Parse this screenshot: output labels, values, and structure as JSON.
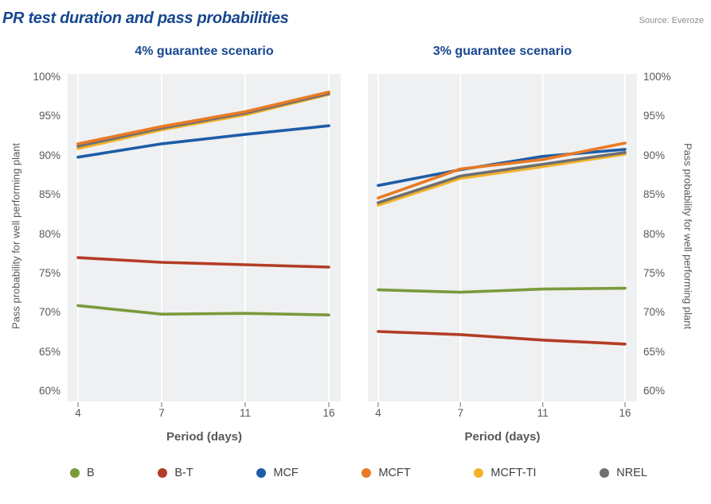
{
  "header": {
    "title": "PR test duration and pass probabilities",
    "source": "Source: Everoze"
  },
  "axis": {
    "x_label": "Period (days)",
    "y_label_left": "Pass probability for well performing plant",
    "y_label_right": "Pass probability for well performing plant",
    "x_ticks": [
      "4",
      "7",
      "11",
      "16"
    ],
    "y_ticks": [
      "100%",
      "95%",
      "90%",
      "85%",
      "80%",
      "75%",
      "70%",
      "65%",
      "60%"
    ]
  },
  "colors": {
    "plot_bg": "#eff0f1",
    "grid": "#ffffff",
    "tick_mark": "#97999c",
    "title_blue": "#17478e",
    "axis_text": "#57585a"
  },
  "legend": [
    {
      "label": "B",
      "color": "#7a9a3b"
    },
    {
      "label": "B-T",
      "color": "#b23c25"
    },
    {
      "label": "MCF",
      "color": "#1f5ca8"
    },
    {
      "label": "MCFT",
      "color": "#e87a25"
    },
    {
      "label": "MCFT-TI",
      "color": "#f3b229"
    },
    {
      "label": "NREL",
      "color": "#6e6f72"
    }
  ],
  "chart_data": [
    {
      "type": "line",
      "title": "4% guarantee scenario",
      "x": [
        4,
        7,
        11,
        16
      ],
      "xlabel": "Period (days)",
      "ylabel": "Pass probability for well performing plant (%)",
      "ylim": [
        60,
        100
      ],
      "grid": "vertical",
      "series": [
        {
          "name": "B",
          "color": "#7a9a3b",
          "values": [
            70.9,
            69.8,
            69.9,
            69.7
          ]
        },
        {
          "name": "B-T",
          "color": "#b23c25",
          "values": [
            77.0,
            76.4,
            76.1,
            75.8
          ]
        },
        {
          "name": "MCFT-TI",
          "color": "#f3b229",
          "values": [
            90.9,
            93.3,
            95.2,
            97.8
          ]
        },
        {
          "name": "NREL",
          "color": "#6e6f72",
          "values": [
            91.2,
            93.5,
            95.4,
            97.9
          ]
        },
        {
          "name": "MCF",
          "color": "#1f5ca8",
          "values": [
            89.8,
            91.5,
            92.7,
            93.8
          ]
        },
        {
          "name": "MCFT",
          "color": "#e87a25",
          "values": [
            91.5,
            93.7,
            95.6,
            98.1
          ]
        }
      ]
    },
    {
      "type": "line",
      "title": "3% guarantee scenario",
      "x": [
        4,
        7,
        11,
        16
      ],
      "xlabel": "Period (days)",
      "ylabel": "Pass probability for well performing plant (%)",
      "ylim": [
        60,
        100
      ],
      "grid": "vertical",
      "series": [
        {
          "name": "B",
          "color": "#7a9a3b",
          "values": [
            72.9,
            72.6,
            73.0,
            73.1
          ]
        },
        {
          "name": "B-T",
          "color": "#b23c25",
          "values": [
            67.6,
            67.2,
            66.5,
            66.0
          ]
        },
        {
          "name": "MCFT-TI",
          "color": "#f3b229",
          "values": [
            83.7,
            87.1,
            88.6,
            90.2
          ]
        },
        {
          "name": "NREL",
          "color": "#6e6f72",
          "values": [
            84.0,
            87.4,
            88.9,
            90.4
          ]
        },
        {
          "name": "MCF",
          "color": "#1f5ca8",
          "values": [
            86.2,
            88.2,
            89.9,
            90.8
          ]
        },
        {
          "name": "MCFT",
          "color": "#e87a25",
          "values": [
            84.6,
            88.3,
            89.5,
            91.6
          ]
        }
      ]
    }
  ]
}
